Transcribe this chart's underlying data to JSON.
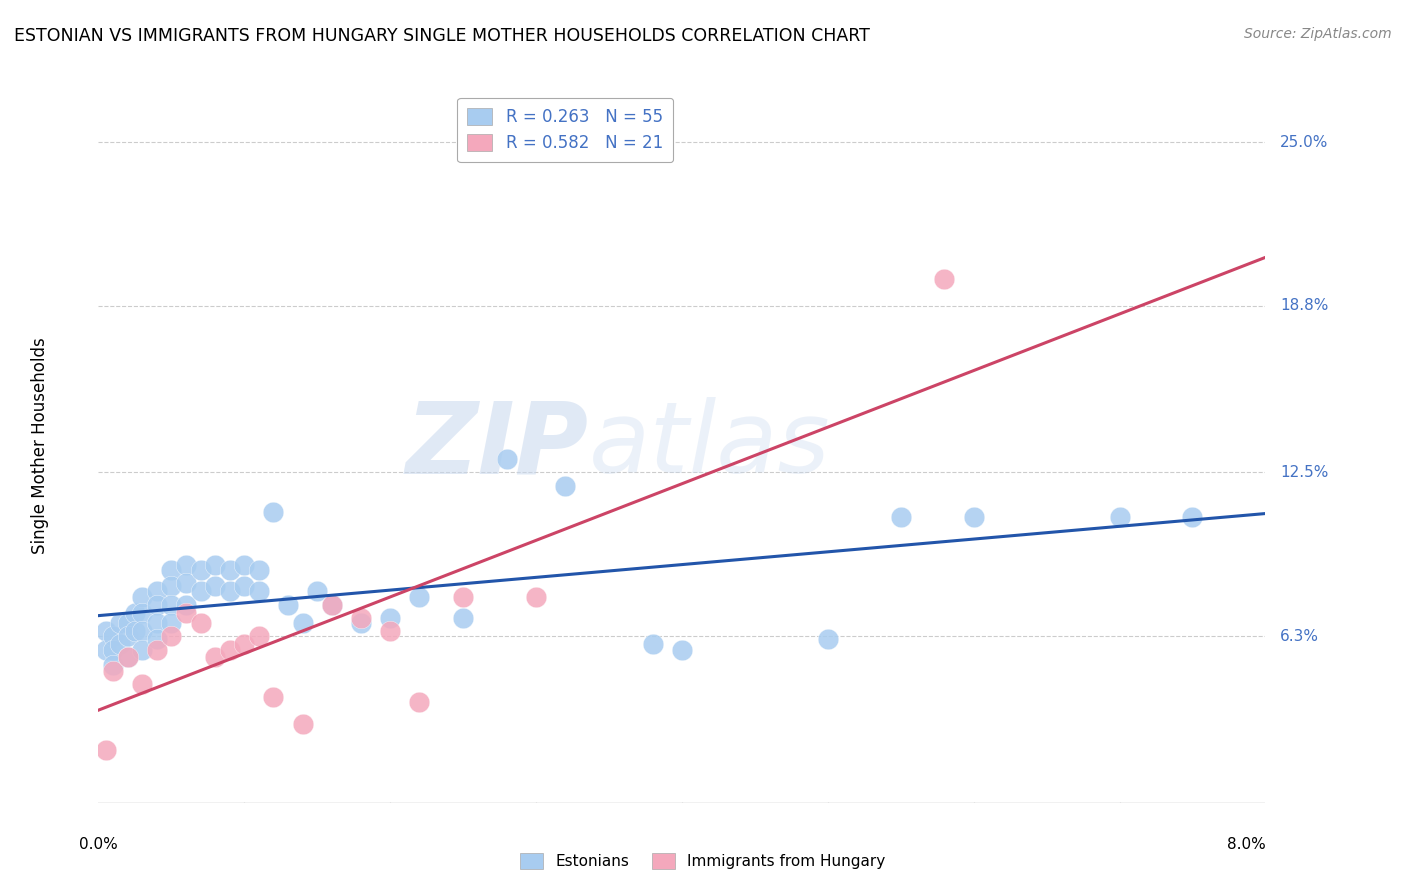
{
  "title": "ESTONIAN VS IMMIGRANTS FROM HUNGARY SINGLE MOTHER HOUSEHOLDS CORRELATION CHART",
  "source": "Source: ZipAtlas.com",
  "ylabel": "Single Mother Households",
  "ytick_labels": [
    "25.0%",
    "18.8%",
    "12.5%",
    "6.3%"
  ],
  "ytick_values": [
    0.25,
    0.188,
    0.125,
    0.063
  ],
  "xmin": 0.0,
  "xmax": 0.08,
  "ymin": 0.0,
  "ymax": 0.27,
  "legend_r1": "R = 0.263   N = 55",
  "legend_r2": "R = 0.582   N = 21",
  "color_estonian": "#A8CCF0",
  "color_hungary": "#F4A8BC",
  "color_trendline_estonian": "#2255AA",
  "color_trendline_hungary": "#CC4466",
  "watermark_zip": "ZIP",
  "watermark_atlas": "atlas",
  "estonian_x": [
    0.0005,
    0.0005,
    0.001,
    0.001,
    0.001,
    0.0015,
    0.0015,
    0.002,
    0.002,
    0.002,
    0.0025,
    0.0025,
    0.003,
    0.003,
    0.003,
    0.003,
    0.004,
    0.004,
    0.004,
    0.004,
    0.005,
    0.005,
    0.005,
    0.005,
    0.006,
    0.006,
    0.006,
    0.007,
    0.007,
    0.008,
    0.008,
    0.009,
    0.009,
    0.01,
    0.01,
    0.011,
    0.011,
    0.012,
    0.013,
    0.014,
    0.015,
    0.016,
    0.018,
    0.02,
    0.022,
    0.025,
    0.028,
    0.032,
    0.038,
    0.04,
    0.05,
    0.055,
    0.06,
    0.07,
    0.075
  ],
  "estonian_y": [
    0.065,
    0.058,
    0.063,
    0.058,
    0.052,
    0.068,
    0.06,
    0.068,
    0.063,
    0.055,
    0.072,
    0.065,
    0.078,
    0.072,
    0.065,
    0.058,
    0.08,
    0.075,
    0.068,
    0.062,
    0.088,
    0.082,
    0.075,
    0.068,
    0.09,
    0.083,
    0.075,
    0.088,
    0.08,
    0.09,
    0.082,
    0.088,
    0.08,
    0.09,
    0.082,
    0.088,
    0.08,
    0.11,
    0.075,
    0.068,
    0.08,
    0.075,
    0.068,
    0.07,
    0.078,
    0.07,
    0.13,
    0.12,
    0.06,
    0.058,
    0.062,
    0.108,
    0.108,
    0.108,
    0.108
  ],
  "hungary_x": [
    0.0005,
    0.001,
    0.002,
    0.003,
    0.004,
    0.005,
    0.006,
    0.007,
    0.008,
    0.009,
    0.01,
    0.011,
    0.012,
    0.014,
    0.016,
    0.018,
    0.02,
    0.022,
    0.025,
    0.03,
    0.058
  ],
  "hungary_y": [
    0.02,
    0.05,
    0.055,
    0.045,
    0.058,
    0.063,
    0.072,
    0.068,
    0.055,
    0.058,
    0.06,
    0.063,
    0.04,
    0.03,
    0.075,
    0.07,
    0.065,
    0.038,
    0.078,
    0.078,
    0.198
  ]
}
